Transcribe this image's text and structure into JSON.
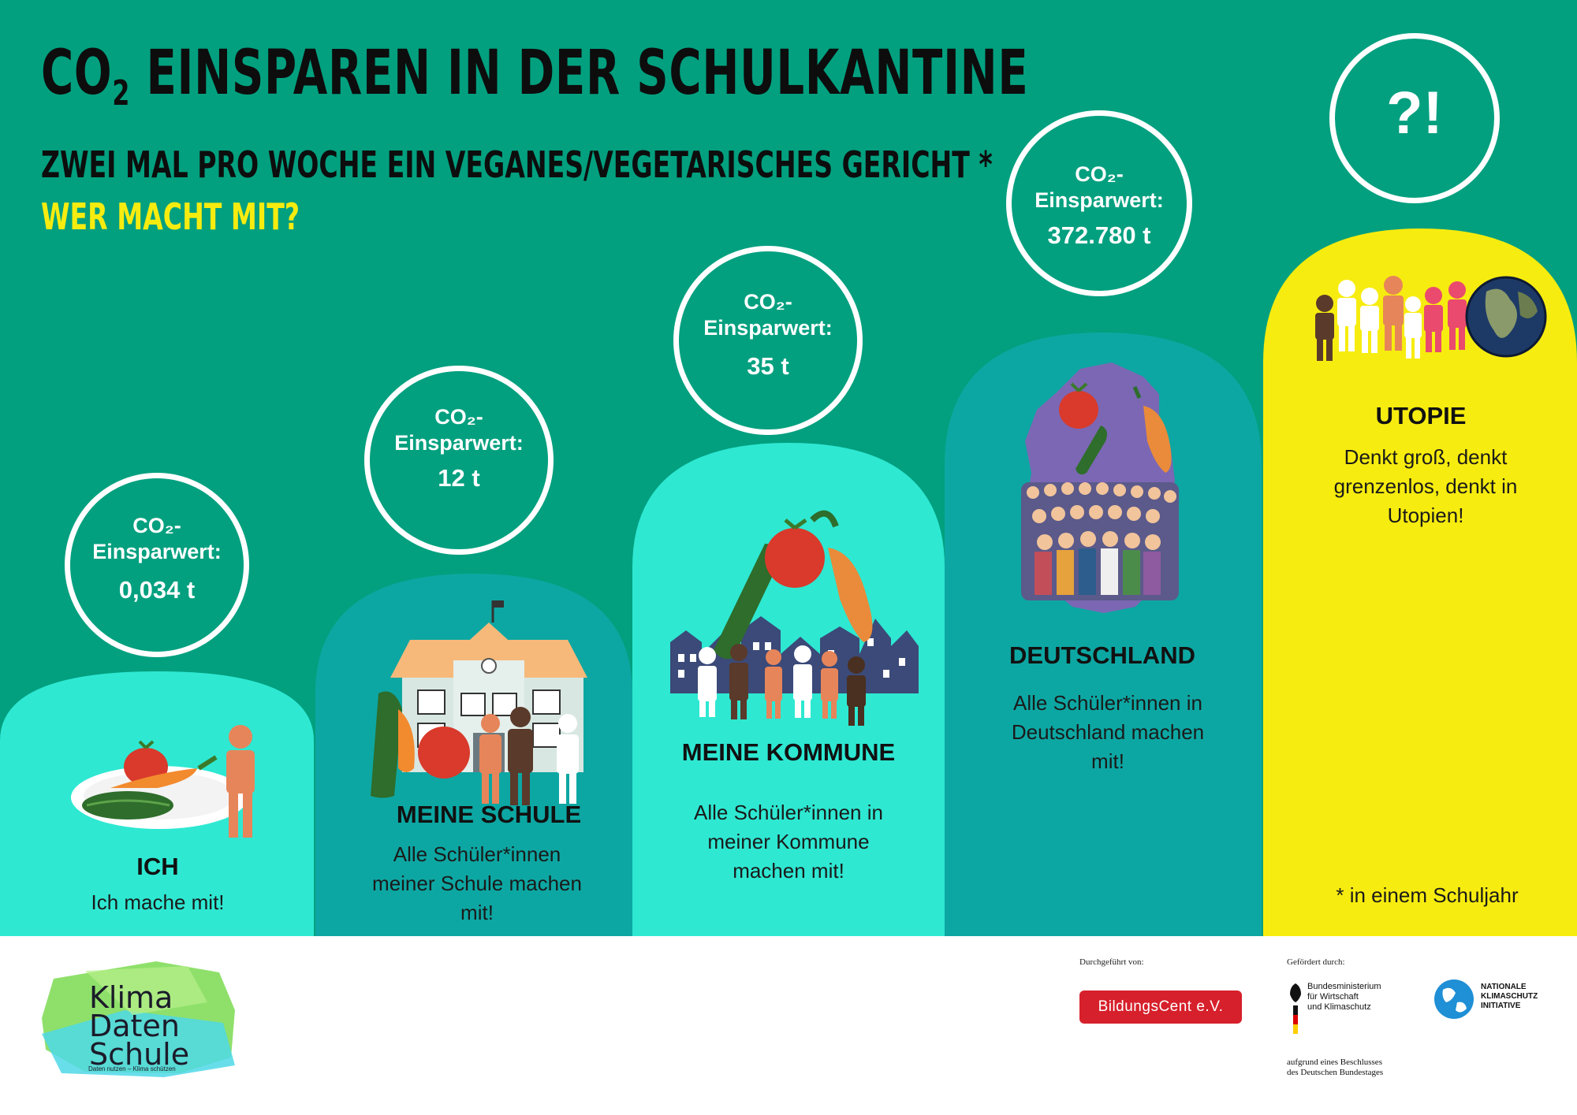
{
  "header": {
    "title_main": "CO",
    "title_sub": "2",
    "title_rest": " EINSPAREN IN DER SCHULKANTINE",
    "subtitle": "ZWEI MAL PRO WOCHE EIN VEGANES/VEGETARISCHES GERICHT *",
    "question": "WER MACHT MIT?"
  },
  "circles": {
    "label_line1": "CO₂-",
    "label_line2": "Einsparwert:",
    "ich": "0,034 t",
    "schule": "12 t",
    "kommune": "35 t",
    "deutschland": "372.780 t",
    "utopie": "?!"
  },
  "columns": {
    "ich": {
      "title": "ICH",
      "desc": [
        "Ich mache mit!"
      ]
    },
    "schule": {
      "title": "MEINE SCHULE",
      "desc": [
        "Alle Schüler*innen",
        "meiner Schule machen",
        "mit!"
      ]
    },
    "kommune": {
      "title": "MEINE KOMMUNE",
      "desc": [
        "Alle Schüler*innen in",
        "meiner Kommune",
        "machen mit!"
      ]
    },
    "deutschland": {
      "title": "DEUTSCHLAND",
      "desc": [
        "Alle Schüler*innen in",
        "Deutschland machen",
        "mit!"
      ]
    },
    "utopie": {
      "title": "UTOPIE",
      "desc": [
        "Denkt groß, denkt",
        "grenzenlos, denkt in",
        "Utopien!"
      ]
    }
  },
  "footnote": "* in einem Schuljahr",
  "footer": {
    "logo_line1": "Klima",
    "logo_line2": "Daten",
    "logo_line3": "Schule",
    "logo_tagline": "Daten nutzen – Klima schützen",
    "durchgefuehrt": "Durchgeführt von:",
    "bildungscent": "BildungsCent e.V.",
    "gefoerdert": "Gefördert durch:",
    "bmwk": [
      "Bundesministerium",
      "für Wirtschaft",
      "und Klimaschutz"
    ],
    "nki": [
      "NATIONALE",
      "KLIMASCHUTZ",
      "INITIATIVE"
    ],
    "beschluss": [
      "aufgrund eines Beschlusses",
      "des Deutschen Bundestages"
    ]
  },
  "colors": {
    "background_green": "#02a07f",
    "mint": "#2ee8d2",
    "teal": "#0da7a3",
    "yellow": "#f7ec0f",
    "accent_red": "#d6202b"
  }
}
